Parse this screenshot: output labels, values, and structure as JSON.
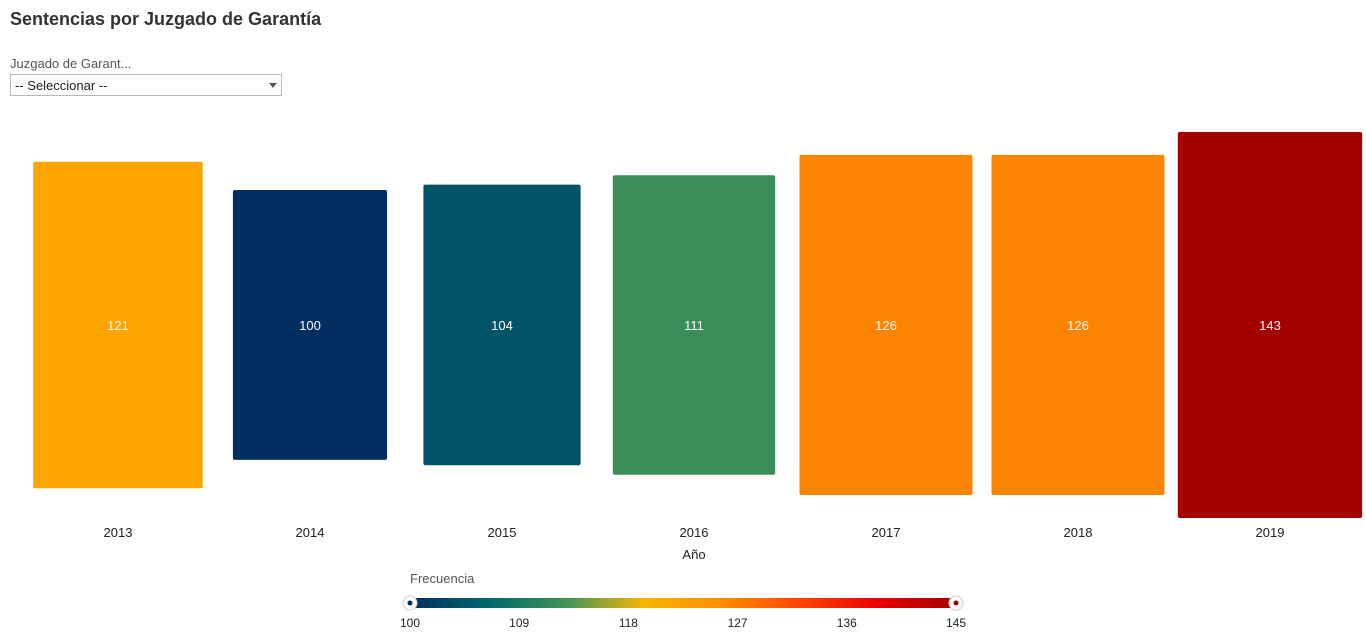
{
  "header": {
    "title": "Sentencias por Juzgado de Garantía"
  },
  "filter": {
    "label": "Juzgado de Garant...",
    "selected": "-- Seleccionar --"
  },
  "chart_data": {
    "type": "bar",
    "categories": [
      "2013",
      "2014",
      "2015",
      "2016",
      "2017",
      "2018",
      "2019"
    ],
    "values": [
      121,
      100,
      104,
      111,
      126,
      126,
      143
    ],
    "colors": [
      "#fca400",
      "#002e60",
      "#015468",
      "#3a8d58",
      "#fb8500",
      "#fb8500",
      "#a50000"
    ],
    "title": "Sentencias por Juzgado de Garantía",
    "xlabel": "Año",
    "ylabel": "",
    "data_labels": true,
    "legend": {
      "title": "Frecuencia",
      "type": "continuous-color",
      "min": 100,
      "max": 145,
      "ticks": [
        100,
        109,
        118,
        127,
        136,
        145
      ],
      "gradient": [
        "#002e60",
        "#00676b",
        "#3f9458",
        "#f7b500",
        "#ff8c00",
        "#ff4500",
        "#e80000",
        "#a50000"
      ]
    }
  }
}
